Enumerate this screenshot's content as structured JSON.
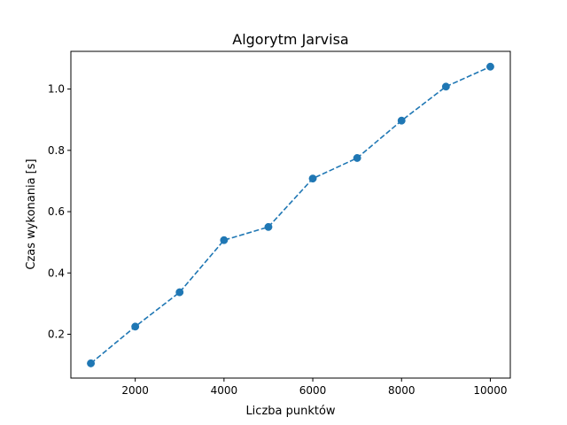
{
  "chart_data": {
    "type": "line",
    "title": "Algorytm Jarvisa",
    "xlabel": "Liczba punktów",
    "ylabel": "Czas wykonania [s]",
    "xlim": [
      550,
      10450
    ],
    "ylim": [
      0.057,
      1.123
    ],
    "xticks": [
      2000,
      4000,
      6000,
      8000,
      10000
    ],
    "xtick_labels": [
      "2000",
      "4000",
      "6000",
      "8000",
      "10000"
    ],
    "yticks": [
      0.2,
      0.4,
      0.6,
      0.8,
      1.0
    ],
    "ytick_labels": [
      "0.2",
      "0.4",
      "0.6",
      "0.8",
      "1.0"
    ],
    "grid": false,
    "series": [
      {
        "line_style": "dashed",
        "marker": "circle",
        "color": "#1f77b4",
        "x": [
          1000,
          2000,
          3000,
          4000,
          5000,
          6000,
          7000,
          8000,
          9000,
          10000
        ],
        "y": [
          0.105,
          0.225,
          0.337,
          0.507,
          0.55,
          0.708,
          0.775,
          0.897,
          1.008,
          1.073
        ]
      }
    ]
  }
}
